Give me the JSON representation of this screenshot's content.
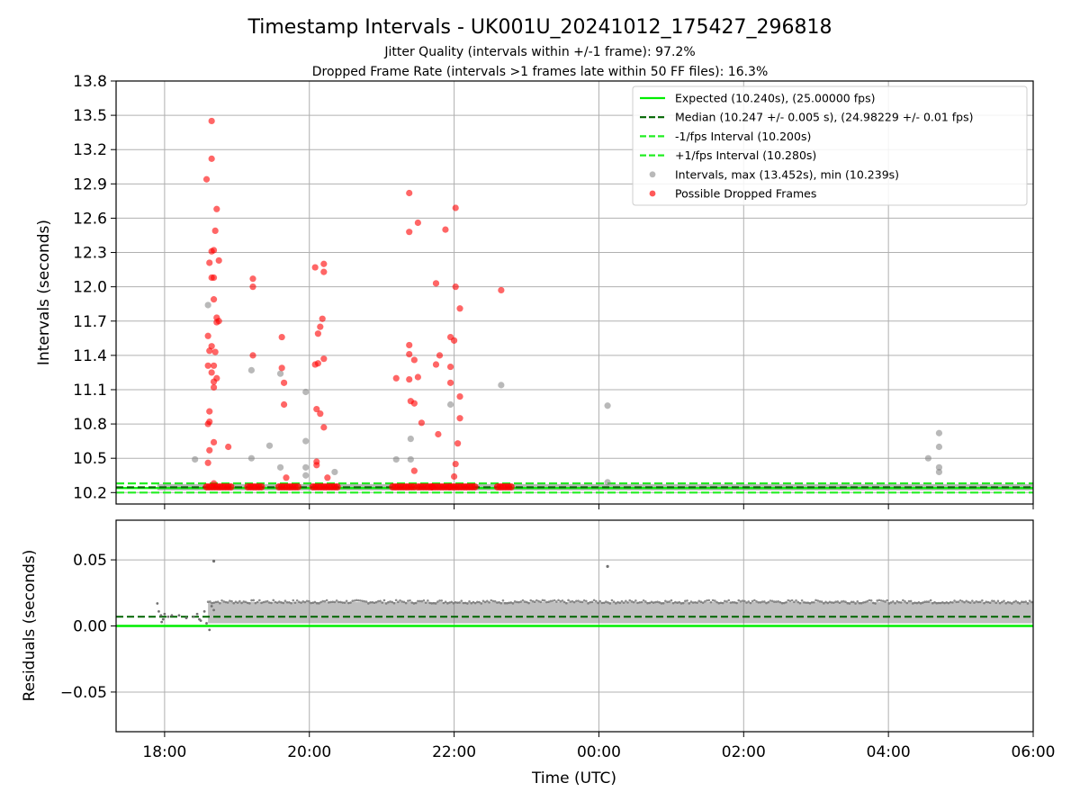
{
  "title": "Timestamp Intervals - UK001U_20241012_175427_296818",
  "subtitle_1": "Jitter Quality (intervals within +/-1 frame): 97.2%",
  "subtitle_2": "Dropped Frame Rate (intervals >1 frames late within 50 FF files): 16.3%",
  "colors": {
    "expected": "#00ee00",
    "median": "#006400",
    "bounds": "#22ee22",
    "intervals": "#808080",
    "dropped": "#ff0000",
    "residuals": "#707070",
    "grid": "#b0b0b0"
  },
  "chart_data": [
    {
      "type": "scatter",
      "ylabel": "Intervals (seconds)",
      "x_unit": "hours since 00:00 UTC on first day (17.5 = 17:30)",
      "xlim": [
        17.33,
        30.0
      ],
      "ylim": [
        10.1,
        13.8
      ],
      "yticks": [
        "10.2",
        "10.5",
        "10.8",
        "11.1",
        "11.4",
        "11.7",
        "12.0",
        "12.3",
        "12.6",
        "12.9",
        "13.2",
        "13.5",
        "13.8"
      ],
      "grid": true,
      "legend_position": "upper-right",
      "legend": [
        {
          "label": "Expected (10.240s), (25.00000 fps)",
          "style": "solid-line"
        },
        {
          "label": "Median (10.247 +/- 0.005 s), (24.98229 +/- 0.01 fps)",
          "style": "dashed-line"
        },
        {
          "label": "-1/fps Interval (10.200s)",
          "style": "dashed-line"
        },
        {
          "label": "+1/fps Interval (10.280s)",
          "style": "dashed-line"
        },
        {
          "label": "Intervals, max (13.452s), min (10.239s)",
          "style": "marker"
        },
        {
          "label": "Possible Dropped Frames",
          "style": "marker"
        }
      ],
      "lines": {
        "expected": 10.24,
        "median": 10.247,
        "lower_bound": 10.2,
        "upper_bound": 10.28
      },
      "baseline_band": {
        "x_start": 17.9,
        "x_end": 30.0,
        "value": 10.247
      },
      "dropped_cluster_spans": [
        [
          18.58,
          18.95
        ],
        [
          19.15,
          19.35
        ],
        [
          19.58,
          19.85
        ],
        [
          20.05,
          20.4
        ],
        [
          21.15,
          21.45
        ],
        [
          21.5,
          21.7
        ],
        [
          21.7,
          21.95
        ],
        [
          21.95,
          22.3
        ],
        [
          22.6,
          22.8
        ]
      ],
      "intervals": [
        [
          18.42,
          10.49
        ],
        [
          18.6,
          11.84
        ],
        [
          19.2,
          11.27
        ],
        [
          19.2,
          10.5
        ],
        [
          19.45,
          10.61
        ],
        [
          19.6,
          11.24
        ],
        [
          19.6,
          10.42
        ],
        [
          19.95,
          11.08
        ],
        [
          19.95,
          10.65
        ],
        [
          19.95,
          10.42
        ],
        [
          19.95,
          10.35
        ],
        [
          20.35,
          10.38
        ],
        [
          21.2,
          10.49
        ],
        [
          21.4,
          10.67
        ],
        [
          21.4,
          10.49
        ],
        [
          21.95,
          10.97
        ],
        [
          22.65,
          11.14
        ],
        [
          24.12,
          10.96
        ],
        [
          24.12,
          10.29
        ],
        [
          28.55,
          10.5
        ],
        [
          28.7,
          10.72
        ],
        [
          28.7,
          10.6
        ],
        [
          28.7,
          10.42
        ],
        [
          28.7,
          10.38
        ]
      ],
      "dropped_frames": [
        [
          18.58,
          12.94
        ],
        [
          18.65,
          13.45
        ],
        [
          18.65,
          13.12
        ],
        [
          18.62,
          12.21
        ],
        [
          18.65,
          12.31
        ],
        [
          18.68,
          12.32
        ],
        [
          18.65,
          12.08
        ],
        [
          18.68,
          12.08
        ],
        [
          18.72,
          12.68
        ],
        [
          18.7,
          12.49
        ],
        [
          18.75,
          12.23
        ],
        [
          18.68,
          11.89
        ],
        [
          18.72,
          11.73
        ],
        [
          18.75,
          11.7
        ],
        [
          18.72,
          11.69
        ],
        [
          18.6,
          11.57
        ],
        [
          18.65,
          11.48
        ],
        [
          18.62,
          11.44
        ],
        [
          18.7,
          11.43
        ],
        [
          18.6,
          11.31
        ],
        [
          18.68,
          11.31
        ],
        [
          18.65,
          11.25
        ],
        [
          18.72,
          11.2
        ],
        [
          18.68,
          11.17
        ],
        [
          18.68,
          11.12
        ],
        [
          18.62,
          10.91
        ],
        [
          18.62,
          10.82
        ],
        [
          18.6,
          10.8
        ],
        [
          18.68,
          10.64
        ],
        [
          18.62,
          10.57
        ],
        [
          18.6,
          10.46
        ],
        [
          18.88,
          10.6
        ],
        [
          18.68,
          10.28
        ],
        [
          19.22,
          12.07
        ],
        [
          19.22,
          12.0
        ],
        [
          19.22,
          11.4
        ],
        [
          19.62,
          11.56
        ],
        [
          19.62,
          11.29
        ],
        [
          19.65,
          11.16
        ],
        [
          19.65,
          10.97
        ],
        [
          19.68,
          10.33
        ],
        [
          20.08,
          12.17
        ],
        [
          20.2,
          12.2
        ],
        [
          20.2,
          12.13
        ],
        [
          20.18,
          11.72
        ],
        [
          20.15,
          11.65
        ],
        [
          20.12,
          11.59
        ],
        [
          20.2,
          11.37
        ],
        [
          20.12,
          11.33
        ],
        [
          20.08,
          11.32
        ],
        [
          20.1,
          10.93
        ],
        [
          20.15,
          10.89
        ],
        [
          20.2,
          10.77
        ],
        [
          20.1,
          10.47
        ],
        [
          20.1,
          10.44
        ],
        [
          20.25,
          10.33
        ],
        [
          21.2,
          11.2
        ],
        [
          21.38,
          12.82
        ],
        [
          21.38,
          12.48
        ],
        [
          21.5,
          12.56
        ],
        [
          21.38,
          11.49
        ],
        [
          21.38,
          11.41
        ],
        [
          21.45,
          11.36
        ],
        [
          21.38,
          11.19
        ],
        [
          21.5,
          11.21
        ],
        [
          21.4,
          11.0
        ],
        [
          21.45,
          10.98
        ],
        [
          21.55,
          10.81
        ],
        [
          21.45,
          10.39
        ],
        [
          21.75,
          12.03
        ],
        [
          21.8,
          11.4
        ],
        [
          21.75,
          11.32
        ],
        [
          21.78,
          10.71
        ],
        [
          21.88,
          12.5
        ],
        [
          21.95,
          11.56
        ],
        [
          21.95,
          11.3
        ],
        [
          21.95,
          11.16
        ],
        [
          22.0,
          11.53
        ],
        [
          22.0,
          10.34
        ],
        [
          22.02,
          12.69
        ],
        [
          22.02,
          12.0
        ],
        [
          22.08,
          11.81
        ],
        [
          22.05,
          10.63
        ],
        [
          22.02,
          10.45
        ],
        [
          22.08,
          11.04
        ],
        [
          22.08,
          10.85
        ],
        [
          22.65,
          11.97
        ]
      ]
    },
    {
      "type": "scatter",
      "xlabel": "Time (UTC)",
      "ylabel": "Residuals (seconds)",
      "xlim": [
        17.33,
        30.0
      ],
      "ylim": [
        -0.08,
        0.08
      ],
      "yticks": [
        "−0.05",
        "0.00",
        "0.05"
      ],
      "yticks_values": [
        -0.05,
        0.0,
        0.05
      ],
      "xticks": [
        "18:00",
        "20:00",
        "22:00",
        "00:00",
        "02:00",
        "04:00",
        "06:00"
      ],
      "xticks_values": [
        18,
        20,
        22,
        24,
        26,
        28,
        30
      ],
      "grid": true,
      "lines": {
        "expected": 0.0,
        "median": 0.007
      },
      "residual_band": {
        "x_start": 18.6,
        "x_end": 30.0,
        "low": 0.002,
        "high": 0.018
      },
      "early_residuals": [
        [
          17.9,
          0.017
        ],
        [
          17.92,
          0.011
        ],
        [
          17.95,
          0.008
        ],
        [
          17.96,
          0.003
        ],
        [
          17.98,
          0.005
        ],
        [
          18.0,
          0.009
        ],
        [
          18.05,
          0.007
        ],
        [
          18.1,
          0.008
        ],
        [
          18.2,
          0.008
        ],
        [
          18.3,
          0.006
        ],
        [
          18.4,
          0.007
        ],
        [
          18.45,
          0.009
        ],
        [
          18.48,
          0.005
        ],
        [
          18.5,
          0.004
        ],
        [
          18.55,
          0.011
        ],
        [
          18.58,
          0.002
        ],
        [
          18.62,
          -0.003
        ],
        [
          18.65,
          0.015
        ],
        [
          18.68,
          0.012
        ]
      ],
      "outliers": [
        [
          18.68,
          0.049
        ],
        [
          24.12,
          0.045
        ]
      ]
    }
  ]
}
